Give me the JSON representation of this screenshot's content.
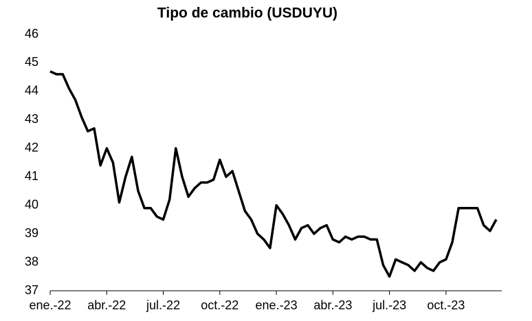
{
  "chart_data": {
    "type": "line",
    "title": "Tipo de cambio (USDUYU)",
    "categories": [
      "ene.-22",
      null,
      null,
      null,
      null,
      null,
      null,
      null,
      null,
      "abr.-22",
      null,
      null,
      null,
      null,
      null,
      null,
      null,
      null,
      "jul.-22",
      null,
      null,
      null,
      null,
      null,
      null,
      null,
      null,
      "oct.-22",
      null,
      null,
      null,
      null,
      null,
      null,
      null,
      null,
      "ene.-23",
      null,
      null,
      null,
      null,
      null,
      null,
      null,
      null,
      "abr.-23",
      null,
      null,
      null,
      null,
      null,
      null,
      null,
      null,
      "jul.-23",
      null,
      null,
      null,
      null,
      null,
      null,
      null,
      null,
      "oct.-23",
      null,
      null,
      null,
      null,
      null,
      null,
      null,
      null
    ],
    "series": [
      {
        "name": "USDUYU",
        "color": "#000000",
        "values": [
          44.7,
          44.6,
          44.6,
          44.1,
          43.7,
          43.1,
          42.6,
          42.7,
          41.4,
          42.0,
          41.5,
          40.1,
          41.0,
          41.7,
          40.5,
          39.9,
          39.9,
          39.6,
          39.5,
          40.2,
          42.0,
          41.0,
          40.3,
          40.6,
          40.8,
          40.8,
          40.9,
          41.6,
          41.0,
          41.2,
          40.5,
          39.8,
          39.5,
          39.0,
          38.8,
          38.5,
          40.0,
          39.7,
          39.3,
          38.8,
          39.2,
          39.3,
          39.0,
          39.2,
          39.3,
          38.8,
          38.7,
          38.9,
          38.8,
          38.9,
          38.9,
          38.8,
          38.8,
          37.9,
          37.5,
          38.1,
          38.0,
          37.9,
          37.7,
          38.0,
          37.8,
          37.7,
          38.0,
          38.1,
          38.7,
          39.9,
          39.9,
          39.9,
          39.9,
          39.3,
          39.1,
          39.5
        ]
      }
    ],
    "ylim": [
      37,
      46
    ],
    "yticks": [
      37,
      38,
      39,
      40,
      41,
      42,
      43,
      44,
      45,
      46
    ],
    "grid": false
  }
}
